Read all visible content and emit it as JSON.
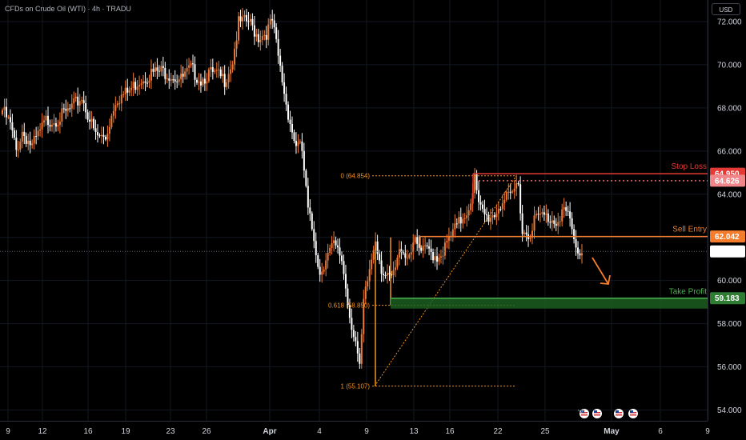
{
  "header": {
    "title": "CFDs on Crude Oil (WTI) · 4h · TRADU",
    "currency": "USD"
  },
  "colors": {
    "bull": "#ef7a34",
    "bear": "#ffffff",
    "stop": "#e53935",
    "entry": "#f57c2b",
    "target": "#4caf50",
    "fib": "#f7931a",
    "grid": "#131722"
  },
  "chart_data": {
    "type": "candlestick",
    "timeframe": "4h",
    "ylim": [
      53.5,
      73.0
    ],
    "y_ticks": [
      "54.000",
      "56.000",
      "58.000",
      "60.000",
      "62.000",
      "64.000",
      "66.000",
      "68.000",
      "70.000",
      "72.000"
    ],
    "x_ticks": [
      "9",
      "12",
      "16",
      "19",
      "23",
      "26",
      "Apr",
      "4",
      "9",
      "13",
      "16",
      "22",
      "25",
      "May",
      "6",
      "9"
    ],
    "anchors_close": [
      [
        0,
        67.9
      ],
      [
        4,
        67.2
      ],
      [
        7,
        66.0
      ],
      [
        10,
        66.9
      ],
      [
        15,
        66.2
      ],
      [
        22,
        67.4
      ],
      [
        28,
        67.5
      ],
      [
        34,
        67.9
      ],
      [
        40,
        68.5
      ],
      [
        47,
        66.7
      ],
      [
        52,
        66.6
      ],
      [
        57,
        68.4
      ],
      [
        63,
        68.7
      ],
      [
        69,
        69.3
      ],
      [
        75,
        69.6
      ],
      [
        81,
        69.7
      ],
      [
        86,
        69.5
      ],
      [
        90,
        69.3
      ],
      [
        95,
        69.8
      ],
      [
        100,
        69.3
      ],
      [
        104,
        69.6
      ],
      [
        108,
        69.5
      ],
      [
        112,
        69.3
      ],
      [
        116,
        70.2
      ],
      [
        119,
        71.9
      ],
      [
        124,
        72.0
      ],
      [
        129,
        71.3
      ],
      [
        133,
        71.5
      ],
      [
        136,
        72.0
      ],
      [
        140,
        69.8
      ],
      [
        143,
        68.2
      ],
      [
        147,
        66.5
      ],
      [
        151,
        66.0
      ],
      [
        154,
        63.2
      ],
      [
        157,
        62.0
      ],
      [
        160,
        60.3
      ],
      [
        163,
        61.1
      ],
      [
        167,
        61.6
      ],
      [
        171,
        61.0
      ],
      [
        175,
        58.4
      ],
      [
        178,
        57.2
      ],
      [
        180,
        55.8
      ],
      [
        182,
        58.9
      ],
      [
        185,
        60.5
      ],
      [
        188,
        62.0
      ],
      [
        191,
        60.6
      ],
      [
        194,
        60.0
      ],
      [
        197,
        60.2
      ],
      [
        201,
        61.6
      ],
      [
        204,
        61.1
      ],
      [
        207,
        61.8
      ],
      [
        211,
        61.3
      ],
      [
        215,
        61.4
      ],
      [
        219,
        61.1
      ],
      [
        223,
        61.5
      ],
      [
        227,
        62.2
      ],
      [
        231,
        62.8
      ],
      [
        235,
        63.4
      ],
      [
        238,
        64.7
      ],
      [
        240,
        63.4
      ],
      [
        244,
        62.9
      ],
      [
        248,
        63.1
      ],
      [
        252,
        63.7
      ],
      [
        256,
        63.8
      ],
      [
        260,
        64.6
      ],
      [
        262,
        62.3
      ],
      [
        265,
        62.1
      ],
      [
        268,
        62.8
      ],
      [
        271,
        63.0
      ],
      [
        275,
        62.9
      ],
      [
        279,
        62.8
      ],
      [
        283,
        63.3
      ],
      [
        286,
        62.7
      ],
      [
        289,
        61.4
      ],
      [
        292,
        61.3
      ]
    ],
    "drawings": {
      "stop_loss": {
        "label": "Stop Loss",
        "price": 64.95,
        "price_text": "64.950"
      },
      "sell_entry": {
        "label": "Sell Entry",
        "price": 62.042,
        "price_text": "62.042"
      },
      "take_profit": {
        "label": "Take Profit",
        "price": 59.183,
        "price_text": "59.183"
      },
      "current_price": {
        "price": 61.351,
        "price_text": "61.351"
      },
      "dotted_level": {
        "price": 64.626,
        "price_text": "64.626"
      },
      "fib_levels": [
        {
          "label": "0 (64.854)",
          "price": 64.854
        },
        {
          "label": "0.618 (58.850)",
          "price": 58.85
        },
        {
          "label": "1 (55.107)",
          "price": 55.107
        }
      ]
    }
  }
}
